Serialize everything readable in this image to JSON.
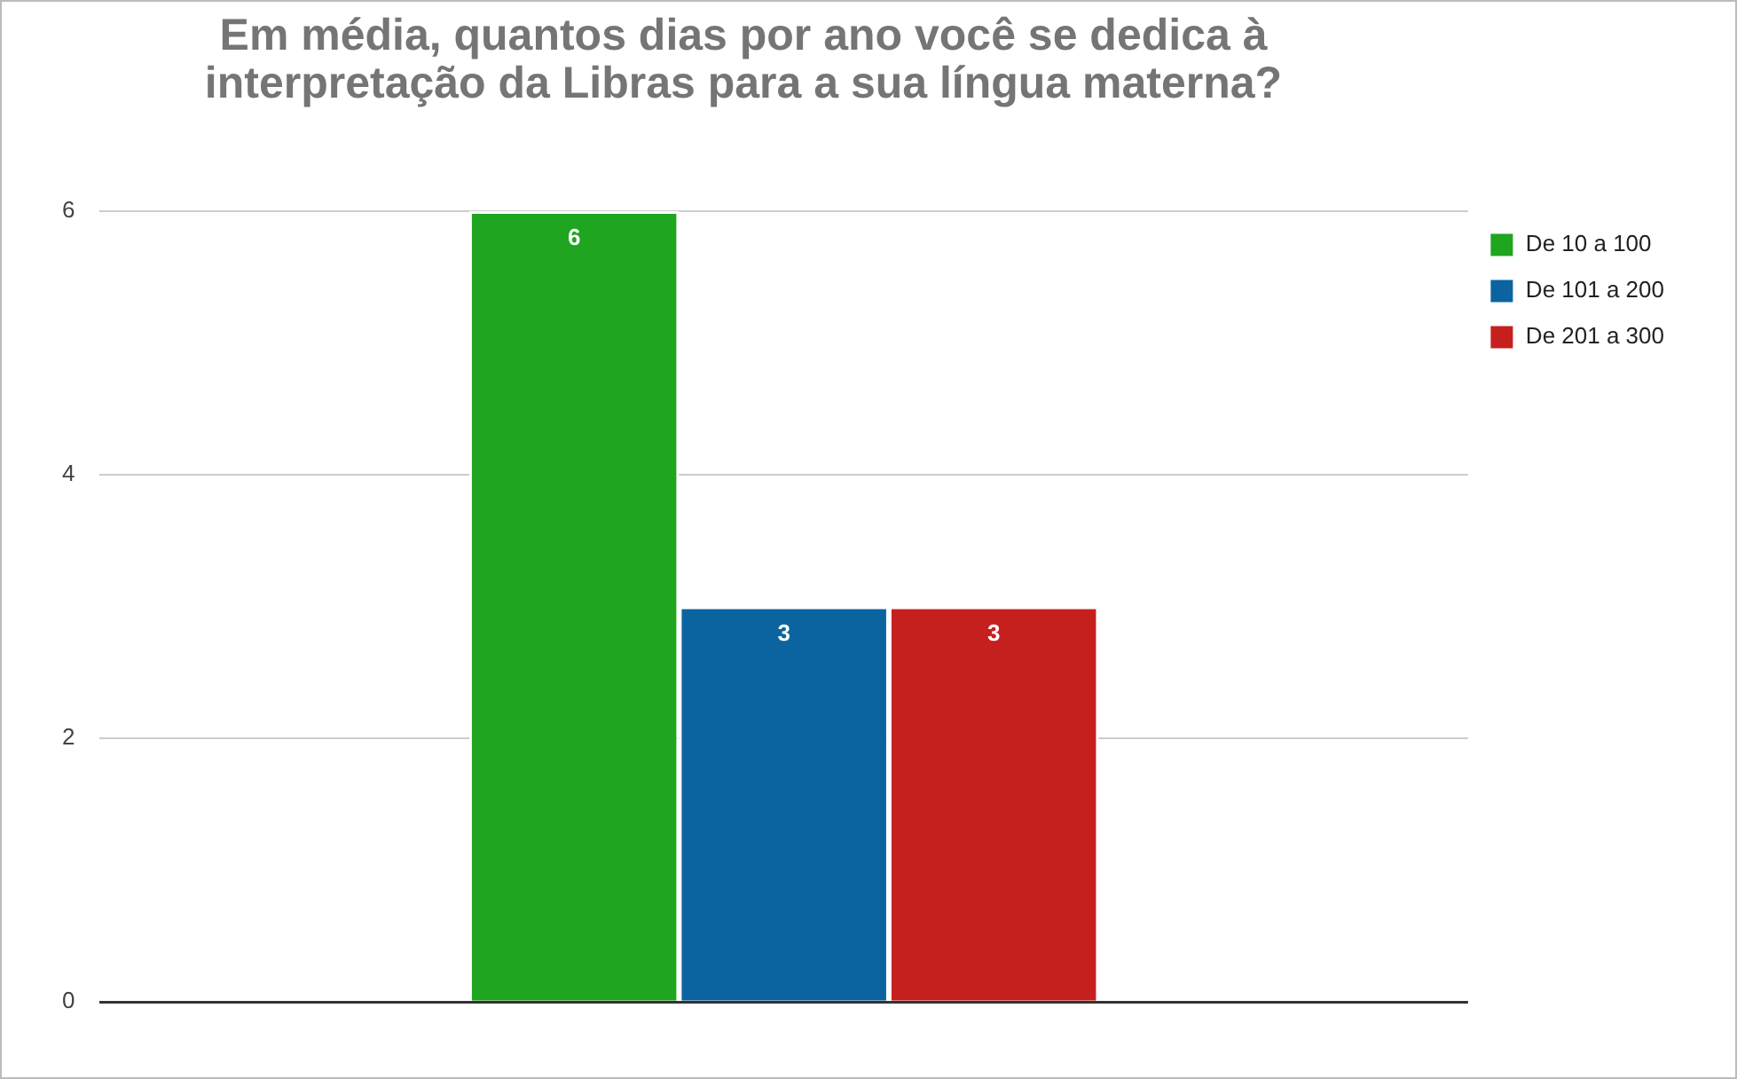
{
  "chart_data": {
    "type": "bar",
    "title": "Em média, quantos dias por ano você se dedica à interpretação da Libras para a sua língua materna?",
    "categories": [
      null
    ],
    "series": [
      {
        "name": "De 10 a 100",
        "color": "#1fa51f",
        "values": [
          6
        ]
      },
      {
        "name": "De 101 a 200",
        "color": "#0b64a0",
        "values": [
          3
        ]
      },
      {
        "name": "De 201 a 300",
        "color": "#c6201e",
        "values": [
          3
        ]
      }
    ],
    "ylim": [
      0,
      6
    ],
    "yticks": [
      0,
      2,
      4,
      6
    ],
    "grid": "y",
    "legend": "right",
    "data_labels": true
  }
}
